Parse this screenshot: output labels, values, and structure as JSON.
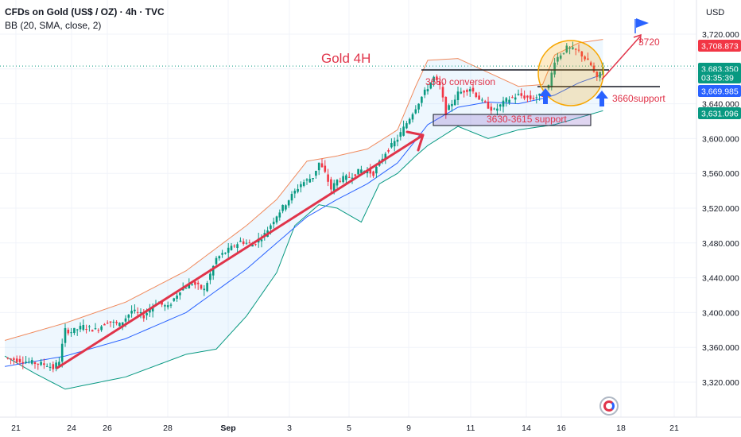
{
  "header": {
    "symbol_line": "CFDs on Gold (US$ / OZ) · 4h · TVC",
    "indicator_line": "BB (20, SMA, close, 2)",
    "currency": "USD"
  },
  "chart_data": {
    "type": "candlestick",
    "title": "Gold 4H",
    "ylim": [
      3300,
      3740
    ],
    "y_ticks": [
      3320,
      3360,
      3400,
      3440,
      3480,
      3520,
      3560,
      3600,
      3640,
      3680,
      3720
    ],
    "y_tick_labels": [
      "3,320.000",
      "3,360.000",
      "3,400.000",
      "3,440.000",
      "3,480.000",
      "3,520.000",
      "3,560.000",
      "3,600.000",
      "3,640.000",
      "3,680.000",
      "3,720.000"
    ],
    "x_labels": [
      "21",
      "24",
      "26",
      "28",
      "Sep",
      "3",
      "5",
      "9",
      "11",
      "14",
      "16",
      "18",
      "21"
    ],
    "grid": true,
    "price_tags": [
      {
        "label": "3,708.873",
        "value": 3708.873,
        "color": "#f23645"
      },
      {
        "label": "3,683.350",
        "value": 3683.35,
        "color": "#089981"
      },
      {
        "label": "03:35:39",
        "value": 3675.0,
        "color": "#089981"
      },
      {
        "label": "3,669.985",
        "value": 3669.985,
        "color": "#2962ff"
      },
      {
        "label": "3,631.096",
        "value": 3631.096,
        "color": "#089981"
      }
    ],
    "close_anchors": [
      [
        0,
        3348
      ],
      [
        5,
        3345
      ],
      [
        10,
        3342
      ],
      [
        14,
        3340
      ],
      [
        16,
        3336
      ],
      [
        18,
        3345
      ],
      [
        20,
        3380
      ],
      [
        22,
        3378
      ],
      [
        26,
        3384
      ],
      [
        30,
        3380
      ],
      [
        34,
        3390
      ],
      [
        38,
        3386
      ],
      [
        42,
        3402
      ],
      [
        46,
        3396
      ],
      [
        50,
        3412
      ],
      [
        54,
        3406
      ],
      [
        58,
        3426
      ],
      [
        62,
        3434
      ],
      [
        66,
        3426
      ],
      [
        70,
        3462
      ],
      [
        74,
        3472
      ],
      [
        78,
        3482
      ],
      [
        82,
        3478
      ],
      [
        86,
        3490
      ],
      [
        90,
        3512
      ],
      [
        94,
        3530
      ],
      [
        98,
        3548
      ],
      [
        102,
        3556
      ],
      [
        104,
        3572
      ],
      [
        106,
        3560
      ],
      [
        108,
        3542
      ],
      [
        110,
        3552
      ],
      [
        114,
        3556
      ],
      [
        118,
        3564
      ],
      [
        122,
        3560
      ],
      [
        126,
        3584
      ],
      [
        130,
        3600
      ],
      [
        134,
        3624
      ],
      [
        138,
        3648
      ],
      [
        142,
        3670
      ],
      [
        144,
        3660
      ],
      [
        146,
        3630
      ],
      [
        150,
        3652
      ],
      [
        154,
        3658
      ],
      [
        158,
        3642
      ],
      [
        162,
        3632
      ],
      [
        166,
        3644
      ],
      [
        170,
        3650
      ],
      [
        174,
        3646
      ],
      [
        178,
        3650
      ],
      [
        180,
        3660
      ],
      [
        182,
        3690
      ],
      [
        186,
        3704
      ],
      [
        190,
        3700
      ],
      [
        194,
        3684
      ],
      [
        196,
        3668
      ],
      [
        198,
        3684
      ]
    ],
    "bb_upper_anchors": [
      [
        0,
        3368
      ],
      [
        20,
        3388
      ],
      [
        40,
        3412
      ],
      [
        60,
        3448
      ],
      [
        80,
        3500
      ],
      [
        90,
        3530
      ],
      [
        100,
        3574
      ],
      [
        110,
        3580
      ],
      [
        120,
        3588
      ],
      [
        130,
        3610
      ],
      [
        136,
        3660
      ],
      [
        140,
        3690
      ],
      [
        150,
        3692
      ],
      [
        160,
        3676
      ],
      [
        170,
        3660
      ],
      [
        178,
        3662
      ],
      [
        182,
        3696
      ],
      [
        190,
        3710
      ],
      [
        198,
        3714
      ]
    ],
    "bb_mid_anchors": [
      [
        0,
        3338
      ],
      [
        20,
        3350
      ],
      [
        40,
        3370
      ],
      [
        60,
        3400
      ],
      [
        80,
        3450
      ],
      [
        90,
        3480
      ],
      [
        100,
        3510
      ],
      [
        110,
        3530
      ],
      [
        120,
        3548
      ],
      [
        130,
        3572
      ],
      [
        136,
        3598
      ],
      [
        140,
        3616
      ],
      [
        150,
        3636
      ],
      [
        160,
        3642
      ],
      [
        170,
        3640
      ],
      [
        178,
        3646
      ],
      [
        182,
        3650
      ],
      [
        190,
        3664
      ],
      [
        198,
        3674
      ]
    ],
    "bb_lower_anchors": [
      [
        0,
        3350
      ],
      [
        10,
        3330
      ],
      [
        20,
        3312
      ],
      [
        40,
        3326
      ],
      [
        60,
        3352
      ],
      [
        70,
        3358
      ],
      [
        80,
        3396
      ],
      [
        90,
        3446
      ],
      [
        96,
        3500
      ],
      [
        104,
        3524
      ],
      [
        110,
        3520
      ],
      [
        118,
        3504
      ],
      [
        124,
        3548
      ],
      [
        130,
        3560
      ],
      [
        136,
        3580
      ],
      [
        140,
        3592
      ],
      [
        150,
        3614
      ],
      [
        160,
        3600
      ],
      [
        170,
        3610
      ],
      [
        178,
        3614
      ],
      [
        182,
        3616
      ],
      [
        190,
        3624
      ],
      [
        198,
        3632
      ]
    ],
    "annotations": {
      "conversion": {
        "label": "3680 conversion",
        "value": 3680
      },
      "support_zone": {
        "label": "3630-3615 support",
        "low": 3615,
        "high": 3630
      },
      "support_3660": {
        "label": "3660support",
        "value": 3660
      },
      "target": {
        "label": "3720",
        "value": 3720
      }
    },
    "colors": {
      "up": "#089981",
      "down": "#f23645",
      "trend": "#e0344a",
      "band": "#2962ff",
      "circle": "#f7a600"
    }
  }
}
